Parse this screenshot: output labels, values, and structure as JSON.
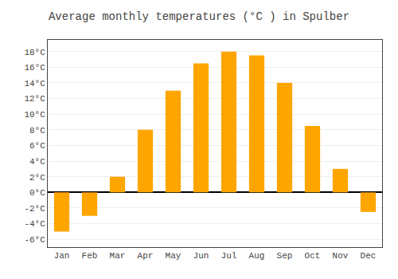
{
  "chart_data": {
    "type": "bar",
    "title": "Average monthly temperatures (°C ) in Spulber",
    "categories": [
      "Jan",
      "Feb",
      "Mar",
      "Apr",
      "May",
      "Jun",
      "Jul",
      "Aug",
      "Sep",
      "Oct",
      "Nov",
      "Dec"
    ],
    "values": [
      -5.0,
      -3.0,
      2.0,
      8.0,
      13.0,
      16.5,
      18.0,
      17.5,
      14.0,
      8.5,
      3.0,
      -2.5
    ],
    "color": "#FFA500",
    "ylim": [
      -7,
      19.5
    ],
    "yticks": [
      {
        "value": -6,
        "label": "-6°C"
      },
      {
        "value": -4,
        "label": "-4°C"
      },
      {
        "value": -2,
        "label": "-2°C"
      },
      {
        "value": 0,
        "label": "0°C"
      },
      {
        "value": 2,
        "label": "2°C"
      },
      {
        "value": 4,
        "label": "4°C"
      },
      {
        "value": 6,
        "label": "6°C"
      },
      {
        "value": 8,
        "label": "8°C"
      },
      {
        "value": 10,
        "label": "10°C"
      },
      {
        "value": 12,
        "label": "12°C"
      },
      {
        "value": 14,
        "label": "14°C"
      },
      {
        "value": 16,
        "label": "16°C"
      },
      {
        "value": 18,
        "label": "18°C"
      }
    ],
    "grid": true
  }
}
